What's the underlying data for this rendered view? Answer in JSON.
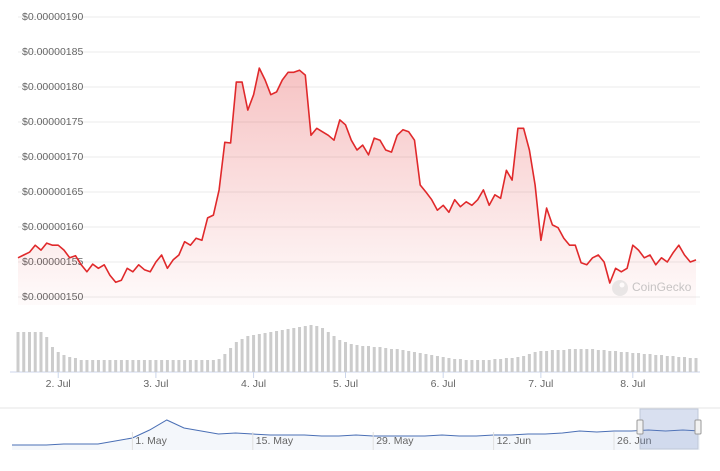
{
  "chart_data": [
    {
      "type": "area",
      "color": "#e0292b",
      "watermark": "CoinGecko",
      "categories": [
        null,
        null,
        null,
        null,
        null,
        null,
        null,
        "2. Jul",
        null,
        null,
        null,
        null,
        null,
        null,
        null,
        null,
        null,
        null,
        null,
        null,
        null,
        null,
        null,
        null,
        "3. Jul",
        null,
        null,
        null,
        null,
        null,
        null,
        null,
        null,
        null,
        null,
        null,
        null,
        null,
        null,
        null,
        null,
        "4. Jul",
        null,
        null,
        null,
        null,
        null,
        null,
        null,
        null,
        null,
        null,
        null,
        null,
        null,
        null,
        null,
        "5. Jul",
        null,
        null,
        null,
        null,
        null,
        null,
        null,
        null,
        null,
        null,
        null,
        null,
        null,
        null,
        null,
        null,
        "6. Jul",
        null,
        null,
        null,
        null,
        null,
        null,
        null,
        null,
        null,
        null,
        null,
        null,
        null,
        null,
        null,
        null,
        "7. Jul",
        null,
        null,
        null,
        null,
        null,
        null,
        null,
        null,
        null,
        null,
        null,
        null,
        null,
        null,
        null,
        "8. Jul",
        null,
        null,
        null,
        null,
        null,
        null,
        null,
        null,
        null,
        null,
        null
      ],
      "values": [
        1.556e-06,
        1.56e-06,
        1.564e-06,
        1.574e-06,
        1.567e-06,
        1.577e-06,
        1.574e-06,
        1.574e-06,
        1.567e-06,
        1.556e-06,
        1.559e-06,
        1.546e-06,
        1.536e-06,
        1.547e-06,
        1.541e-06,
        1.546e-06,
        1.531e-06,
        1.521e-06,
        1.524e-06,
        1.541e-06,
        1.536e-06,
        1.546e-06,
        1.539e-06,
        1.536e-06,
        1.55e-06,
        1.56e-06,
        1.541e-06,
        1.553e-06,
        1.56e-06,
        1.579e-06,
        1.574e-06,
        1.584e-06,
        1.581e-06,
        1.613e-06,
        1.617e-06,
        1.653e-06,
        1.721e-06,
        1.72e-06,
        1.807e-06,
        1.807e-06,
        1.767e-06,
        1.789e-06,
        1.827e-06,
        1.81e-06,
        1.789e-06,
        1.793e-06,
        1.81e-06,
        1.821e-06,
        1.821e-06,
        1.824e-06,
        1.817e-06,
        1.731e-06,
        1.741e-06,
        1.736e-06,
        1.731e-06,
        1.724e-06,
        1.753e-06,
        1.746e-06,
        1.724e-06,
        1.71e-06,
        1.717e-06,
        1.703e-06,
        1.727e-06,
        1.724e-06,
        1.71e-06,
        1.707e-06,
        1.731e-06,
        1.739e-06,
        1.736e-06,
        1.724e-06,
        1.66e-06,
        1.65e-06,
        1.639e-06,
        1.624e-06,
        1.631e-06,
        1.621e-06,
        1.639e-06,
        1.629e-06,
        1.636e-06,
        1.631e-06,
        1.639e-06,
        1.653e-06,
        1.631e-06,
        1.646e-06,
        1.641e-06,
        1.681e-06,
        1.667e-06,
        1.741e-06,
        1.741e-06,
        1.71e-06,
        1.66e-06,
        1.581e-06,
        1.627e-06,
        1.603e-06,
        1.599e-06,
        1.584e-06,
        1.574e-06,
        1.574e-06,
        1.549e-06,
        1.546e-06,
        1.556e-06,
        1.56e-06,
        1.55e-06,
        1.52e-06,
        1.541e-06,
        1.536e-06,
        1.541e-06,
        1.574e-06,
        1.567e-06,
        1.556e-06,
        1.56e-06,
        1.546e-06,
        1.556e-06,
        1.55e-06,
        1.563e-06,
        1.574e-06,
        1.56e-06,
        1.55e-06,
        1.553e-06
      ],
      "ylim": [
        1.5e-06,
        1.9e-06
      ],
      "yticks": [
        {
          "value": 1.5e-06,
          "label": "$0.00000150"
        },
        {
          "value": 1.55e-06,
          "label": "$0.00000155"
        },
        {
          "value": 1.6e-06,
          "label": "$0.00000160"
        },
        {
          "value": 1.65e-06,
          "label": "$0.00000165"
        },
        {
          "value": 1.7e-06,
          "label": "$0.00000170"
        },
        {
          "value": 1.75e-06,
          "label": "$0.00000175"
        },
        {
          "value": 1.8e-06,
          "label": "$0.00000180"
        },
        {
          "value": 1.85e-06,
          "label": "$0.00000185"
        },
        {
          "value": 1.9e-06,
          "label": "$0.00000190"
        }
      ],
      "grid": true
    },
    {
      "type": "bar",
      "color": "#cccccc",
      "values": [
        40,
        40,
        40,
        40,
        40,
        35,
        25,
        20,
        17,
        15,
        14,
        12,
        12,
        12,
        12,
        12,
        12,
        12,
        12,
        12,
        12,
        12,
        12,
        12,
        12,
        12,
        12,
        12,
        12,
        12,
        12,
        12,
        12,
        12,
        12,
        13,
        18,
        24,
        30,
        33,
        36,
        37,
        38,
        39,
        40,
        41,
        42,
        43,
        44,
        45,
        46,
        47,
        46,
        44,
        40,
        36,
        32,
        30,
        28,
        27,
        26,
        26,
        25,
        25,
        24,
        23,
        23,
        22,
        21,
        20,
        19,
        18,
        17,
        16,
        15,
        14,
        13,
        13,
        12,
        12,
        12,
        12,
        12,
        13,
        13,
        14,
        14,
        15,
        16,
        18,
        20,
        21,
        21,
        22,
        22,
        22,
        23,
        23,
        23,
        23,
        23,
        22,
        22,
        21,
        21,
        20,
        20,
        19,
        19,
        18,
        18,
        17,
        17,
        16,
        16,
        15,
        15,
        14,
        14
      ],
      "ylim": [
        0,
        50
      ]
    },
    {
      "type": "line",
      "color": "#4a6fb5",
      "categories": [
        null,
        null,
        null,
        null,
        null,
        null,
        null,
        "1. May",
        null,
        null,
        null,
        null,
        null,
        null,
        "15. May",
        null,
        null,
        null,
        null,
        null,
        null,
        "29. May",
        null,
        null,
        null,
        null,
        null,
        null,
        "12. Jun",
        null,
        null,
        null,
        null,
        null,
        null,
        "26. Jun",
        null,
        null,
        null,
        null,
        null
      ],
      "values": [
        5,
        5,
        5,
        6,
        6,
        6,
        9,
        12,
        20,
        30,
        22,
        19,
        16,
        17,
        16,
        15,
        15,
        15,
        14,
        14,
        15,
        14,
        14,
        14,
        14,
        15,
        14,
        14,
        15,
        15,
        16,
        16,
        17,
        19,
        18,
        19,
        19,
        20,
        19,
        20,
        19
      ],
      "ylim": [
        0,
        40
      ]
    }
  ]
}
